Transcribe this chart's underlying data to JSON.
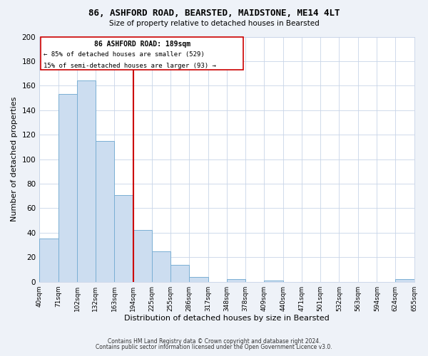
{
  "title1": "86, ASHFORD ROAD, BEARSTED, MAIDSTONE, ME14 4LT",
  "title2": "Size of property relative to detached houses in Bearsted",
  "xlabel": "Distribution of detached houses by size in Bearsted",
  "ylabel": "Number of detached properties",
  "bar_left_edges": [
    40,
    71,
    102,
    132,
    163,
    194,
    225,
    255,
    286,
    317,
    348,
    378,
    409,
    440,
    471,
    501,
    532,
    563,
    594,
    624
  ],
  "bar_heights": [
    35,
    153,
    164,
    115,
    71,
    42,
    25,
    14,
    4,
    0,
    2,
    0,
    1,
    0,
    0,
    0,
    0,
    0,
    0,
    2
  ],
  "bar_widths": [
    31,
    31,
    30,
    31,
    31,
    31,
    30,
    31,
    31,
    31,
    30,
    31,
    31,
    31,
    30,
    31,
    31,
    31,
    30,
    31
  ],
  "tick_labels": [
    "40sqm",
    "71sqm",
    "102sqm",
    "132sqm",
    "163sqm",
    "194sqm",
    "225sqm",
    "255sqm",
    "286sqm",
    "317sqm",
    "348sqm",
    "378sqm",
    "409sqm",
    "440sqm",
    "471sqm",
    "501sqm",
    "532sqm",
    "563sqm",
    "594sqm",
    "624sqm",
    "655sqm"
  ],
  "tick_positions": [
    40,
    71,
    102,
    132,
    163,
    194,
    225,
    255,
    286,
    317,
    348,
    378,
    409,
    440,
    471,
    501,
    532,
    563,
    594,
    624,
    655
  ],
  "property_line_x": 194,
  "ylim": [
    0,
    200
  ],
  "yticks": [
    0,
    20,
    40,
    60,
    80,
    100,
    120,
    140,
    160,
    180,
    200
  ],
  "bar_color": "#ccddf0",
  "bar_edge_color": "#7aafd4",
  "line_color": "#cc0000",
  "annotation_title": "86 ASHFORD ROAD: 189sqm",
  "annotation_line1": "← 85% of detached houses are smaller (529)",
  "annotation_line2": "15% of semi-detached houses are larger (93) →",
  "annotation_box_color": "#ffffff",
  "annotation_box_edge": "#cc0000",
  "footer1": "Contains HM Land Registry data © Crown copyright and database right 2024.",
  "footer2": "Contains public sector information licensed under the Open Government Licence v3.0.",
  "bg_color": "#eef2f8",
  "plot_bg_color": "#ffffff",
  "grid_color": "#c8d4e8"
}
